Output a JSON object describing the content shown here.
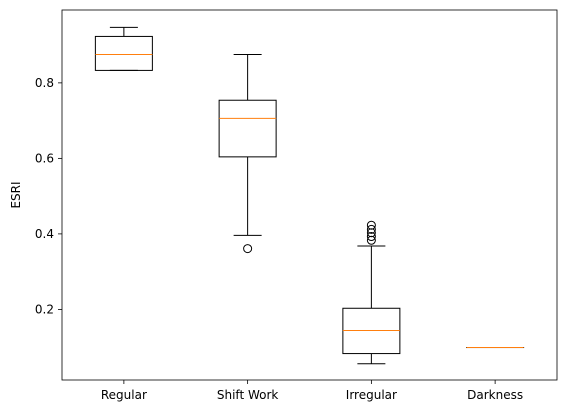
{
  "chart_data": {
    "type": "box",
    "title": "",
    "xlabel": "",
    "ylabel": "ESRI",
    "ylim": [
      0.013,
      0.993
    ],
    "yticks": [
      0.2,
      0.4,
      0.6,
      0.8
    ],
    "ytick_labels": [
      "0.2",
      "0.4",
      "0.6",
      "0.8"
    ],
    "grid": false,
    "colors": {
      "box": "#000000",
      "median": "#ff7f0e",
      "background": "#ffffff"
    },
    "categories": [
      "Regular",
      "Shift Work",
      "Irregular",
      "Darkness"
    ],
    "boxes": [
      {
        "category": "Regular",
        "whisker_low": 0.833,
        "q1": 0.833,
        "median": 0.875,
        "q3": 0.923,
        "whisker_high": 0.947,
        "fliers": []
      },
      {
        "category": "Shift Work",
        "whisker_low": 0.396,
        "q1": 0.604,
        "median": 0.706,
        "q3": 0.754,
        "whisker_high": 0.875,
        "fliers": [
          0.361
        ]
      },
      {
        "category": "Irregular",
        "whisker_low": 0.056,
        "q1": 0.083,
        "median": 0.144,
        "q3": 0.203,
        "whisker_high": 0.368,
        "fliers": [
          0.383,
          0.393,
          0.403,
          0.412,
          0.423
        ]
      },
      {
        "category": "Darkness",
        "whisker_low": 0.099,
        "q1": 0.099,
        "median": 0.099,
        "q3": 0.099,
        "whisker_high": 0.099,
        "fliers": []
      }
    ]
  }
}
